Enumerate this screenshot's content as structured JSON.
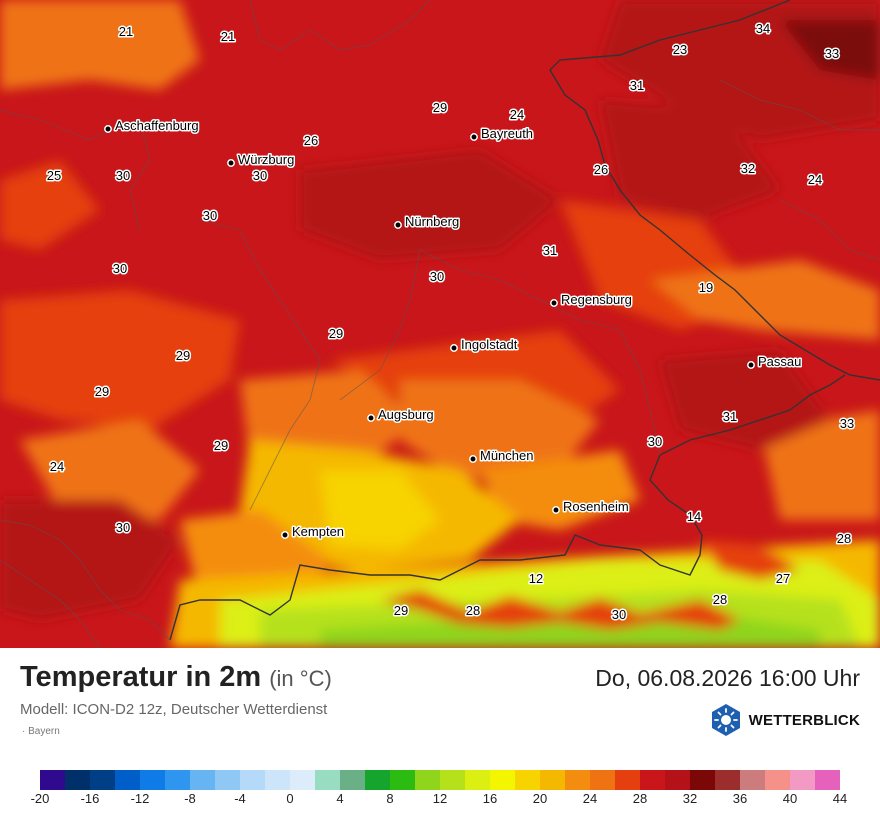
{
  "map": {
    "background_color": "#c8161a",
    "cities": [
      {
        "name": "Aschaffenburg"
      },
      {
        "name": "Würzburg"
      },
      {
        "name": "Bayreuth"
      },
      {
        "name": "Nürnberg"
      },
      {
        "name": "Regensburg"
      },
      {
        "name": "Ingolstadt"
      },
      {
        "name": "Passau"
      },
      {
        "name": "Augsburg"
      },
      {
        "name": "München"
      },
      {
        "name": "Rosenheim"
      },
      {
        "name": "Kempten"
      }
    ],
    "temperature_labels": [
      "21",
      "21",
      "34",
      "33",
      "23",
      "31",
      "29",
      "24",
      "26",
      "30",
      "25",
      "30",
      "26",
      "32",
      "24",
      "30",
      "31",
      "30",
      "30",
      "19",
      "29",
      "29",
      "29",
      "31",
      "33",
      "24",
      "29",
      "30",
      "30",
      "14",
      "28",
      "12",
      "27",
      "29",
      "28",
      "28",
      "30"
    ]
  },
  "footer": {
    "title": "Temperatur in 2m",
    "unit": "(in °C)",
    "datetime": "Do, 06.08.2026 16:00 Uhr",
    "model": "Modell: ICON-D2 12z, Deutscher Wetterdienst",
    "region": "· Bayern",
    "logo_text": "WETTERBLICK",
    "logo_icon": "sun-snowflake-icon"
  },
  "legend": {
    "colors": [
      "#2f0a8f",
      "#00306a",
      "#003f85",
      "#005ec8",
      "#0f7be6",
      "#2f96ef",
      "#67b4f3",
      "#8fc7f5",
      "#b5d9f8",
      "#cde5fa",
      "#dcecfb",
      "#98dcc1",
      "#6aaf85",
      "#16a52c",
      "#2cbb11",
      "#8fd51c",
      "#b5e11a",
      "#dcef13",
      "#f3f600",
      "#f7d300",
      "#f5b800",
      "#f48d0f",
      "#ef7312",
      "#e53f0f",
      "#c8161a",
      "#b41218",
      "#7b0707",
      "#9c2d2d",
      "#cc7c7c",
      "#f69189",
      "#f29ac4",
      "#e661bc"
    ],
    "ticks": [
      "-20",
      "-16",
      "-12",
      "-8",
      "-4",
      "0",
      "4",
      "8",
      "12",
      "16",
      "20",
      "24",
      "28",
      "32",
      "36",
      "40",
      "44"
    ]
  }
}
